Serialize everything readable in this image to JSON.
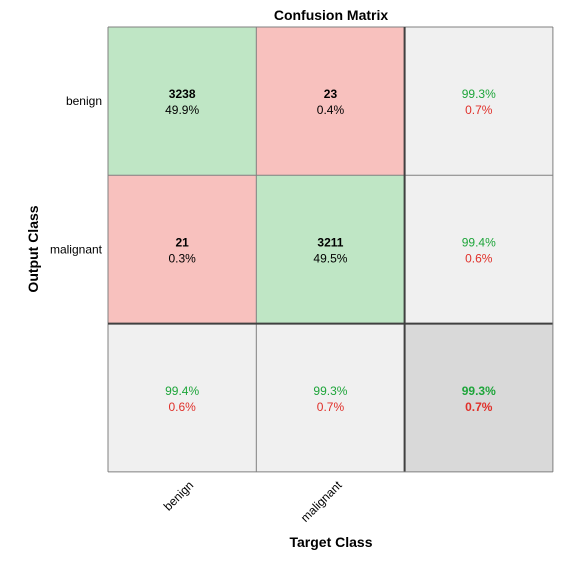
{
  "chart_data": {
    "type": "heatmap",
    "title": "Confusion Matrix",
    "xlabel": "Target Class",
    "ylabel": "Output Class",
    "target_labels": [
      "benign",
      "malignant"
    ],
    "output_labels": [
      "benign",
      "malignant"
    ],
    "matrix": [
      [
        {
          "count": "3238",
          "pct": "49.9%"
        },
        {
          "count": "23",
          "pct": "0.4%"
        }
      ],
      [
        {
          "count": "21",
          "pct": "0.3%"
        },
        {
          "count": "3211",
          "pct": "49.5%"
        }
      ]
    ],
    "row_summary": [
      {
        "correct": "99.3%",
        "wrong": "0.7%"
      },
      {
        "correct": "99.4%",
        "wrong": "0.6%"
      }
    ],
    "col_summary": [
      {
        "correct": "99.4%",
        "wrong": "0.6%"
      },
      {
        "correct": "99.3%",
        "wrong": "0.7%"
      }
    ],
    "overall": {
      "correct": "99.3%",
      "wrong": "0.7%"
    }
  },
  "colors": {
    "correct_cell": "#bfe6c5",
    "wrong_cell": "#f8c1be",
    "summary_cell": "#f0f0f0",
    "overall_cell": "#d9d9d9",
    "correct_text": "#1ea53a",
    "wrong_text": "#e0302a",
    "border": "#808080",
    "thick_border": "#404040"
  }
}
